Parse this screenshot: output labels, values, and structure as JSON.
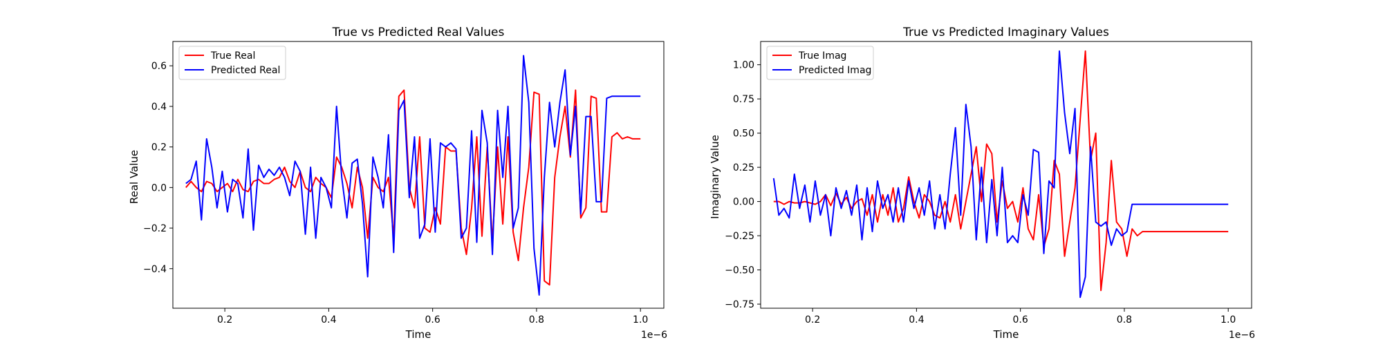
{
  "chart_data": [
    {
      "type": "line",
      "title": "True vs Predicted Real Values",
      "xlabel": "Time",
      "ylabel": "Real Value",
      "x_offset_text": "1e−6",
      "xlim": [
        0.1,
        1.045
      ],
      "ylim": [
        -0.595,
        0.72
      ],
      "x_ticks": [
        0.2,
        0.4,
        0.6,
        0.8,
        1.0
      ],
      "x_tick_labels": [
        "0.2",
        "0.4",
        "0.6",
        "0.8",
        "1.0"
      ],
      "y_ticks": [
        -0.4,
        -0.2,
        0.0,
        0.2,
        0.4,
        0.6
      ],
      "y_tick_labels": [
        "−0.4",
        "−0.2",
        "0.0",
        "0.2",
        "0.4",
        "0.6"
      ],
      "grid": false,
      "legend": "top-left",
      "x": [
        0.125,
        0.135,
        0.145,
        0.155,
        0.165,
        0.175,
        0.185,
        0.195,
        0.205,
        0.215,
        0.225,
        0.235,
        0.245,
        0.255,
        0.265,
        0.275,
        0.285,
        0.295,
        0.305,
        0.315,
        0.325,
        0.335,
        0.345,
        0.355,
        0.365,
        0.375,
        0.385,
        0.395,
        0.405,
        0.415,
        0.425,
        0.435,
        0.445,
        0.455,
        0.465,
        0.475,
        0.485,
        0.495,
        0.505,
        0.515,
        0.525,
        0.535,
        0.545,
        0.555,
        0.565,
        0.575,
        0.585,
        0.595,
        0.605,
        0.615,
        0.625,
        0.635,
        0.645,
        0.655,
        0.665,
        0.675,
        0.685,
        0.695,
        0.705,
        0.715,
        0.725,
        0.735,
        0.745,
        0.755,
        0.765,
        0.775,
        0.785,
        0.795,
        0.805,
        0.815,
        0.825,
        0.835,
        0.845,
        0.855,
        0.865,
        0.875,
        0.885,
        0.895,
        0.905,
        0.915,
        0.925,
        0.935,
        0.945,
        0.955,
        0.965,
        0.975,
        0.985,
        0.995,
        1.0
      ],
      "series": [
        {
          "name": "True Real",
          "color": "#ff0000",
          "values": [
            0.0,
            0.03,
            0.0,
            -0.02,
            0.03,
            0.02,
            -0.02,
            0.0,
            0.02,
            -0.02,
            0.04,
            -0.01,
            -0.02,
            0.03,
            0.04,
            0.02,
            0.02,
            0.04,
            0.05,
            0.1,
            0.03,
            0.0,
            0.08,
            0.0,
            -0.02,
            0.05,
            0.02,
            0.0,
            -0.05,
            0.15,
            0.1,
            0.02,
            -0.1,
            0.1,
            0.0,
            -0.25,
            0.05,
            0.0,
            -0.02,
            0.05,
            -0.25,
            0.45,
            0.48,
            0.0,
            -0.1,
            0.25,
            -0.2,
            -0.22,
            -0.1,
            -0.18,
            0.2,
            0.18,
            0.18,
            -0.2,
            -0.33,
            -0.1,
            0.25,
            -0.24,
            0.2,
            -0.27,
            0.2,
            -0.18,
            0.25,
            -0.22,
            -0.36,
            -0.1,
            0.1,
            0.47,
            0.46,
            -0.46,
            -0.48,
            0.05,
            0.25,
            0.4,
            0.15,
            0.48,
            -0.15,
            -0.1,
            0.45,
            0.44,
            -0.12,
            -0.12,
            0.25,
            0.27,
            0.24,
            0.25,
            0.24,
            0.24,
            0.24
          ]
        },
        {
          "name": "Predicted Real",
          "color": "#0000ff",
          "values": [
            0.02,
            0.04,
            0.13,
            -0.16,
            0.24,
            0.1,
            -0.1,
            0.08,
            -0.12,
            0.04,
            0.02,
            -0.15,
            0.19,
            -0.21,
            0.11,
            0.05,
            0.09,
            0.06,
            0.1,
            0.05,
            -0.04,
            0.13,
            0.08,
            -0.23,
            0.1,
            -0.25,
            0.05,
            0.0,
            -0.1,
            0.4,
            0.05,
            -0.15,
            0.12,
            0.14,
            -0.08,
            -0.44,
            0.15,
            0.05,
            -0.1,
            0.26,
            -0.32,
            0.38,
            0.43,
            -0.05,
            0.25,
            -0.25,
            -0.18,
            0.24,
            -0.22,
            0.22,
            0.2,
            0.22,
            0.19,
            -0.25,
            -0.2,
            0.28,
            -0.27,
            0.38,
            0.22,
            -0.33,
            0.38,
            0.05,
            0.4,
            -0.2,
            -0.1,
            0.65,
            0.42,
            -0.3,
            -0.53,
            0.05,
            0.42,
            0.2,
            0.42,
            0.58,
            0.16,
            0.4,
            -0.13,
            0.35,
            0.35,
            -0.07,
            -0.07,
            0.44,
            0.45,
            0.45,
            0.45,
            0.45,
            0.45,
            0.45,
            0.45
          ]
        }
      ]
    },
    {
      "type": "line",
      "title": "True vs Predicted Imaginary Values",
      "xlabel": "Time",
      "ylabel": "Imaginary Value",
      "x_offset_text": "1e−6",
      "xlim": [
        0.1,
        1.045
      ],
      "ylim": [
        -0.78,
        1.17
      ],
      "x_ticks": [
        0.2,
        0.4,
        0.6,
        0.8,
        1.0
      ],
      "x_tick_labels": [
        "0.2",
        "0.4",
        "0.6",
        "0.8",
        "1.0"
      ],
      "y_ticks": [
        -0.75,
        -0.5,
        -0.25,
        0.0,
        0.25,
        0.5,
        0.75,
        1.0
      ],
      "y_tick_labels": [
        "−0.75",
        "−0.50",
        "−0.25",
        "0.00",
        "0.25",
        "0.50",
        "0.75",
        "1.00"
      ],
      "grid": false,
      "legend": "top-left",
      "x": [
        0.125,
        0.135,
        0.145,
        0.155,
        0.165,
        0.175,
        0.185,
        0.195,
        0.205,
        0.215,
        0.225,
        0.235,
        0.245,
        0.255,
        0.265,
        0.275,
        0.285,
        0.295,
        0.305,
        0.315,
        0.325,
        0.335,
        0.345,
        0.355,
        0.365,
        0.375,
        0.385,
        0.395,
        0.405,
        0.415,
        0.425,
        0.435,
        0.445,
        0.455,
        0.465,
        0.475,
        0.485,
        0.495,
        0.505,
        0.515,
        0.525,
        0.535,
        0.545,
        0.555,
        0.565,
        0.575,
        0.585,
        0.595,
        0.605,
        0.615,
        0.625,
        0.635,
        0.645,
        0.655,
        0.665,
        0.675,
        0.685,
        0.695,
        0.705,
        0.715,
        0.725,
        0.735,
        0.745,
        0.755,
        0.765,
        0.775,
        0.785,
        0.795,
        0.805,
        0.815,
        0.825,
        0.835,
        0.845,
        0.855,
        0.865,
        0.875,
        0.885,
        0.895,
        0.905,
        0.915,
        0.925,
        0.935,
        0.945,
        0.955,
        0.965,
        0.975,
        0.985,
        0.995,
        1.0
      ],
      "series": [
        {
          "name": "True Imag",
          "color": "#ff0000",
          "values": [
            0.0,
            0.0,
            -0.02,
            0.0,
            -0.01,
            -0.01,
            0.0,
            -0.01,
            -0.02,
            0.0,
            0.05,
            -0.03,
            0.06,
            -0.02,
            0.03,
            -0.05,
            0.0,
            0.02,
            -0.1,
            0.05,
            -0.15,
            0.05,
            -0.1,
            0.1,
            -0.15,
            -0.05,
            0.18,
            0.0,
            -0.12,
            0.05,
            0.0,
            -0.1,
            -0.12,
            0.0,
            -0.15,
            0.05,
            -0.2,
            0.0,
            0.2,
            0.4,
            0.0,
            0.42,
            0.35,
            -0.15,
            0.15,
            -0.05,
            0.0,
            -0.15,
            0.1,
            -0.2,
            -0.28,
            0.05,
            -0.33,
            -0.2,
            0.3,
            0.2,
            -0.4,
            -0.15,
            0.1,
            0.6,
            1.1,
            0.3,
            0.5,
            -0.65,
            -0.3,
            0.3,
            -0.15,
            -0.2,
            -0.4,
            -0.2,
            -0.25,
            -0.22,
            -0.22,
            -0.22,
            -0.22,
            -0.22,
            -0.22,
            -0.22,
            -0.22,
            -0.22,
            -0.22,
            -0.22,
            -0.22,
            -0.22,
            -0.22,
            -0.22,
            -0.22,
            -0.22,
            -0.22
          ]
        },
        {
          "name": "Predicted Imag",
          "color": "#0000ff",
          "values": [
            0.17,
            -0.1,
            -0.05,
            -0.12,
            0.2,
            -0.05,
            0.12,
            -0.15,
            0.15,
            -0.1,
            0.05,
            -0.25,
            0.1,
            -0.05,
            0.08,
            -0.1,
            0.12,
            -0.28,
            0.1,
            -0.22,
            0.15,
            -0.05,
            0.05,
            -0.15,
            0.1,
            -0.15,
            0.15,
            -0.05,
            0.1,
            -0.1,
            0.15,
            -0.2,
            0.05,
            -0.2,
            0.2,
            0.54,
            -0.1,
            0.71,
            0.4,
            -0.28,
            0.25,
            -0.3,
            0.16,
            -0.25,
            0.25,
            -0.3,
            -0.25,
            -0.3,
            0.05,
            -0.1,
            0.38,
            0.36,
            -0.38,
            0.15,
            0.1,
            1.1,
            0.65,
            0.35,
            0.68,
            -0.7,
            -0.55,
            0.4,
            -0.15,
            -0.18,
            -0.15,
            -0.32,
            -0.2,
            -0.25,
            -0.22,
            -0.02,
            -0.02,
            -0.02,
            -0.02,
            -0.02,
            -0.02,
            -0.02,
            -0.02,
            -0.02,
            -0.02,
            -0.02,
            -0.02,
            -0.02,
            -0.02,
            -0.02,
            -0.02,
            -0.02,
            -0.02,
            -0.02,
            -0.02
          ]
        }
      ]
    }
  ]
}
